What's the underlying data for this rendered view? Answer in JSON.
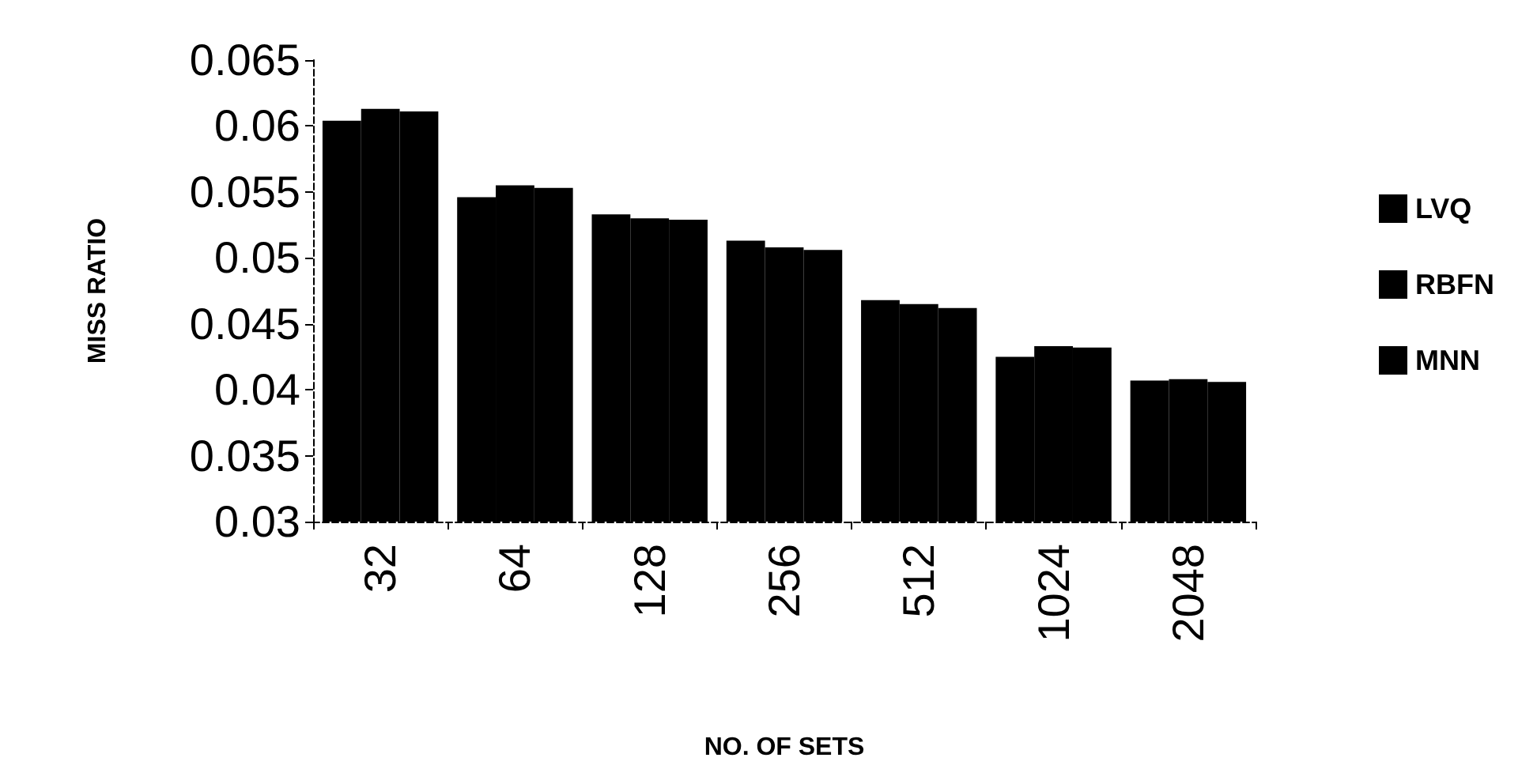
{
  "chart_data": {
    "type": "bar",
    "xlabel": "NO. OF SETS",
    "ylabel": "MISS RATIO",
    "categories": [
      "32",
      "64",
      "128",
      "256",
      "512",
      "1024",
      "2048"
    ],
    "series": [
      {
        "name": "LVQ",
        "color": "#000000",
        "values": [
          0.0604,
          0.0546,
          0.0533,
          0.0513,
          0.0468,
          0.0425,
          0.0407
        ]
      },
      {
        "name": "RBFN",
        "color": "#000000",
        "values": [
          0.0613,
          0.0555,
          0.053,
          0.0508,
          0.0465,
          0.0433,
          0.0408
        ]
      },
      {
        "name": "MNN",
        "color": "#000000",
        "values": [
          0.0611,
          0.0553,
          0.0529,
          0.0506,
          0.0462,
          0.0432,
          0.0406
        ]
      }
    ],
    "ylim": [
      0.03,
      0.065
    ],
    "yticks": [
      0.03,
      0.035,
      0.04,
      0.045,
      0.05,
      0.055,
      0.06,
      0.065
    ],
    "grid": false,
    "legend": "right"
  }
}
